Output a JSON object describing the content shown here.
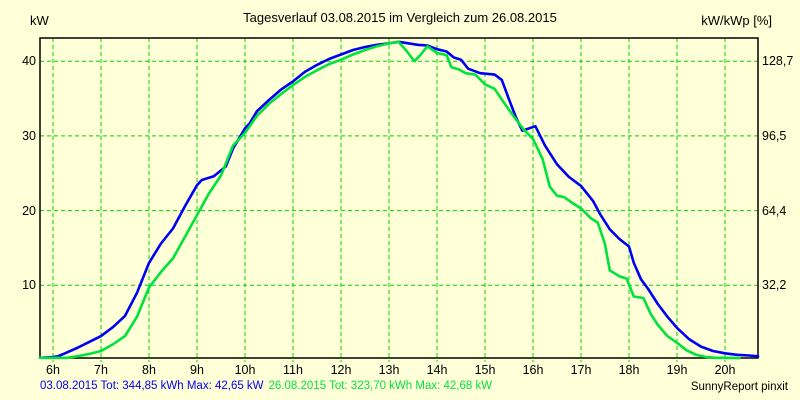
{
  "title": "Tagesverlauf 03.08.2015 im Vergleich zum 26.08.2015",
  "left_axis_unit": "kW",
  "right_axis_unit": "kW/kWp [%]",
  "footer": {
    "series1_summary": "03.08.2015 Tot: 344,85 kWh Max: 42,65 kW",
    "series2_summary": "26.08.2015 Tot: 323,70 kWh Max: 42,68 kW",
    "credit": "SunnyReport pinxit"
  },
  "colors": {
    "background": "#FFFFD8",
    "border": "#000000",
    "grid": "#00D400",
    "series1": "#0000F5",
    "series2": "#00E23C",
    "text": "#000000"
  },
  "chart_data": {
    "type": "line",
    "title": "Tagesverlauf 03.08.2015 im Vergleich zum 26.08.2015",
    "xlabel": "",
    "ylabel_left": "kW",
    "ylabel_right": "kW/kWp [%]",
    "grid": true,
    "grid_style": "dashed",
    "x_hours": [
      6,
      7,
      8,
      9,
      10,
      11,
      12,
      13,
      14,
      15,
      16,
      17,
      18,
      19,
      20
    ],
    "x_tick_labels": [
      "6h",
      "7h",
      "8h",
      "9h",
      "10h",
      "11h",
      "12h",
      "13h",
      "14h",
      "15h",
      "16h",
      "17h",
      "18h",
      "19h",
      "20h"
    ],
    "left_tick_values": [
      10,
      20,
      30,
      40
    ],
    "left_tick_labels": [
      "10",
      "20",
      "30",
      "40"
    ],
    "right_tick_labels": [
      "32,2",
      "64,4",
      "96,5",
      "128,7"
    ],
    "xlim": [
      5.73,
      20.7
    ],
    "ylim": [
      0,
      43.2
    ],
    "series": [
      {
        "name": "03.08.2015",
        "color": "#0000F5",
        "total": "344,85 kWh",
        "max": "42,65 kW",
        "x": [
          5.73,
          6.0,
          6.1,
          6.25,
          6.5,
          6.75,
          7.0,
          7.25,
          7.5,
          7.75,
          8.0,
          8.25,
          8.5,
          8.75,
          9.0,
          9.1,
          9.35,
          9.6,
          9.75,
          10.0,
          10.1,
          10.25,
          10.5,
          10.75,
          11.0,
          11.25,
          11.5,
          11.75,
          12.0,
          12.25,
          12.5,
          12.75,
          13.0,
          13.2,
          13.4,
          13.6,
          13.8,
          14.0,
          14.2,
          14.35,
          14.5,
          14.65,
          14.9,
          15.2,
          15.35,
          15.5,
          15.65,
          15.78,
          16.05,
          16.25,
          16.5,
          16.75,
          17.0,
          17.25,
          17.4,
          17.6,
          17.8,
          18.0,
          18.1,
          18.25,
          18.4,
          18.6,
          18.8,
          19.0,
          19.25,
          19.5,
          19.75,
          20.0,
          20.25,
          20.5,
          20.69
        ],
        "y": [
          0.3,
          0.4,
          0.5,
          0.9,
          1.6,
          2.4,
          3.2,
          4.4,
          5.9,
          9.0,
          13.0,
          15.6,
          17.6,
          20.6,
          23.4,
          24.1,
          24.6,
          25.9,
          28.3,
          31.0,
          31.7,
          33.3,
          34.8,
          36.2,
          37.3,
          38.6,
          39.5,
          40.3,
          40.9,
          41.5,
          41.9,
          42.2,
          42.4,
          42.6,
          42.4,
          42.2,
          42.1,
          41.6,
          41.3,
          40.5,
          40.2,
          39.0,
          38.4,
          38.2,
          37.5,
          34.9,
          32.4,
          30.7,
          31.3,
          28.7,
          26.2,
          24.5,
          23.3,
          21.3,
          19.5,
          17.5,
          16.2,
          15.2,
          13.0,
          10.8,
          9.5,
          7.5,
          5.8,
          4.3,
          2.8,
          1.8,
          1.2,
          0.9,
          0.7,
          0.6,
          0.5
        ]
      },
      {
        "name": "26.08.2015",
        "color": "#00E23C",
        "total": "323,70 kWh",
        "max": "42,68 kW",
        "x": [
          5.73,
          6.0,
          6.3,
          6.5,
          6.75,
          7.0,
          7.25,
          7.5,
          7.75,
          8.0,
          8.25,
          8.5,
          8.75,
          9.0,
          9.25,
          9.5,
          9.75,
          10.0,
          10.25,
          10.5,
          10.75,
          11.0,
          11.25,
          11.5,
          11.75,
          12.0,
          12.25,
          12.5,
          12.75,
          13.0,
          13.2,
          13.35,
          13.53,
          13.65,
          13.8,
          14.0,
          14.2,
          14.3,
          14.45,
          14.6,
          14.8,
          15.0,
          15.2,
          15.4,
          15.6,
          15.8,
          16.0,
          16.2,
          16.35,
          16.5,
          16.65,
          16.85,
          17.0,
          17.2,
          17.35,
          17.5,
          17.6,
          17.8,
          17.95,
          18.1,
          18.3,
          18.45,
          18.6,
          18.8,
          19.0,
          19.2,
          19.4,
          19.6,
          19.8,
          20.0,
          20.3
        ],
        "y": [
          0.3,
          0.3,
          0.3,
          0.5,
          0.8,
          1.2,
          2.1,
          3.2,
          5.8,
          9.7,
          11.8,
          13.6,
          16.5,
          19.4,
          22.3,
          24.7,
          28.7,
          30.4,
          32.7,
          34.3,
          35.6,
          36.8,
          37.9,
          38.8,
          39.6,
          40.2,
          40.9,
          41.5,
          42.0,
          42.4,
          42.6,
          41.5,
          40.0,
          40.8,
          42.0,
          41.1,
          40.8,
          39.2,
          38.9,
          38.4,
          38.2,
          36.9,
          36.3,
          34.4,
          32.6,
          30.9,
          29.6,
          26.9,
          23.2,
          22.0,
          21.8,
          20.9,
          20.3,
          19.0,
          18.4,
          15.5,
          12.0,
          11.2,
          10.9,
          8.5,
          8.3,
          6.2,
          4.7,
          3.2,
          2.3,
          1.3,
          0.7,
          0.4,
          0.3,
          0.3,
          0.25
        ]
      }
    ]
  }
}
